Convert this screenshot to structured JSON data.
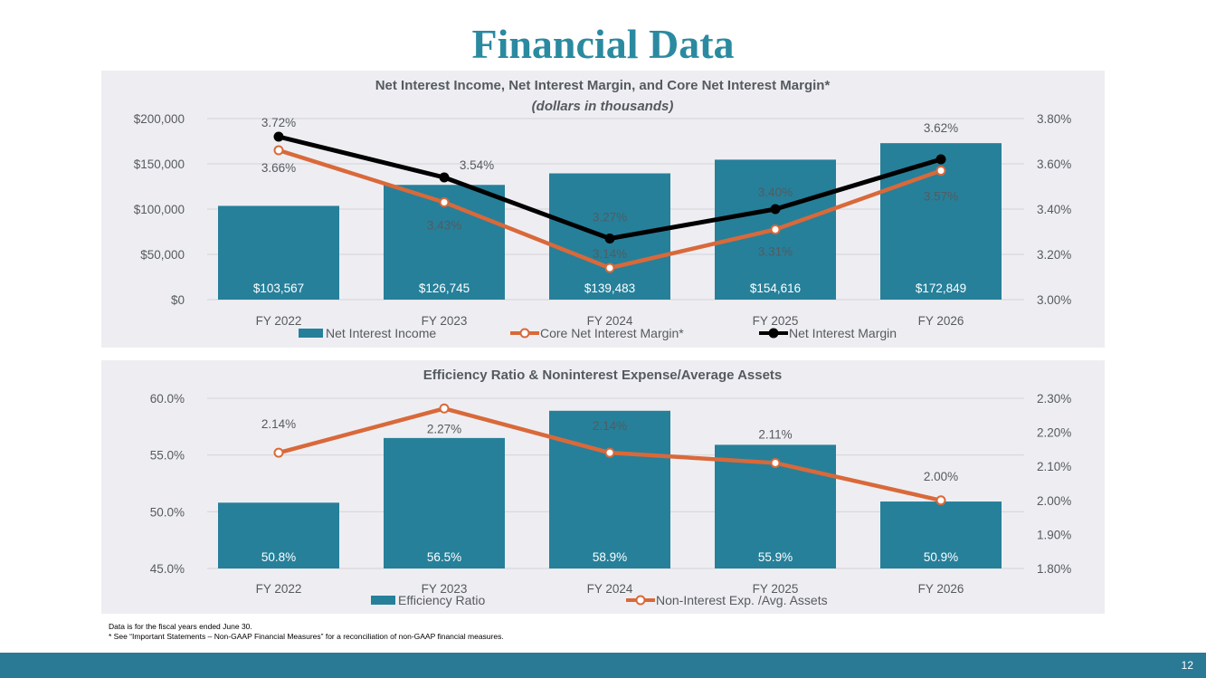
{
  "page": {
    "title": "Financial Data",
    "footnote_1": "Data is for the fiscal years ended June 30.",
    "footnote_2": "* See “Important Statements – Non-GAAP Financial Measures” for a reconciliation of non-GAAP financial measures.",
    "page_number": "12"
  },
  "colors": {
    "bar": "#26809a",
    "orange": "#d9693a",
    "black": "#000000",
    "title": "#2a8aa0",
    "panel": "#eeeef2",
    "footer": "#2a7a96"
  },
  "chart_data": [
    {
      "type": "bar",
      "title": "Net Interest Income, Net Interest Margin, and Core Net Interest Margin*",
      "subtitle": "(dollars in thousands)",
      "categories": [
        "FY 2022",
        "FY 2023",
        "FY 2024",
        "FY 2025",
        "FY 2026"
      ],
      "series": [
        {
          "name": "Net Interest Income",
          "type": "bar",
          "axis": "left",
          "values": [
            103567,
            126745,
            139483,
            154616,
            172849
          ],
          "labels": [
            "$103,567",
            "$126,745",
            "$139,483",
            "$154,616",
            "$172,849"
          ]
        },
        {
          "name": "Core Net Interest Margin*",
          "type": "line",
          "axis": "right",
          "values": [
            3.66,
            3.43,
            3.14,
            3.31,
            3.57
          ],
          "labels": [
            "3.66%",
            "3.43%",
            "3.14%",
            "3.31%",
            "3.57%"
          ]
        },
        {
          "name": "Net Interest Margin",
          "type": "line",
          "axis": "right",
          "values": [
            3.72,
            3.54,
            3.27,
            3.4,
            3.62
          ],
          "labels": [
            "3.72%",
            "3.54%",
            "3.27%",
            "3.40%",
            "3.62%"
          ]
        }
      ],
      "y_left": {
        "min": 0,
        "max": 200000,
        "ticks": [
          "$0",
          "$50,000",
          "$100,000",
          "$150,000",
          "$200,000"
        ]
      },
      "y_right": {
        "min": 3.0,
        "max": 3.8,
        "ticks": [
          "3.00%",
          "3.20%",
          "3.40%",
          "3.60%",
          "3.80%"
        ]
      },
      "grid": true,
      "legend": "bottom"
    },
    {
      "type": "bar",
      "title": "Efficiency Ratio & Noninterest Expense/Average Assets",
      "categories": [
        "FY 2022",
        "FY 2023",
        "FY 2024",
        "FY 2025",
        "FY 2026"
      ],
      "series": [
        {
          "name": "Efficiency Ratio",
          "type": "bar",
          "axis": "left",
          "values": [
            50.8,
            56.5,
            58.9,
            55.9,
            50.9
          ],
          "labels": [
            "50.8%",
            "56.5%",
            "58.9%",
            "55.9%",
            "50.9%"
          ]
        },
        {
          "name": "Non-Interest Exp. /Avg. Assets",
          "type": "line",
          "axis": "right",
          "values": [
            2.14,
            2.27,
            2.14,
            2.11,
            2.0
          ],
          "labels": [
            "2.14%",
            "2.27%",
            "2.14%",
            "2.11%",
            "2.00%"
          ]
        }
      ],
      "y_left": {
        "min": 45,
        "max": 60,
        "ticks": [
          "45.0%",
          "50.0%",
          "55.0%",
          "60.0%"
        ]
      },
      "y_right": {
        "min": 1.8,
        "max": 2.3,
        "ticks": [
          "1.80%",
          "1.90%",
          "2.00%",
          "2.10%",
          "2.20%",
          "2.30%"
        ]
      },
      "grid": true,
      "legend": "bottom"
    }
  ]
}
